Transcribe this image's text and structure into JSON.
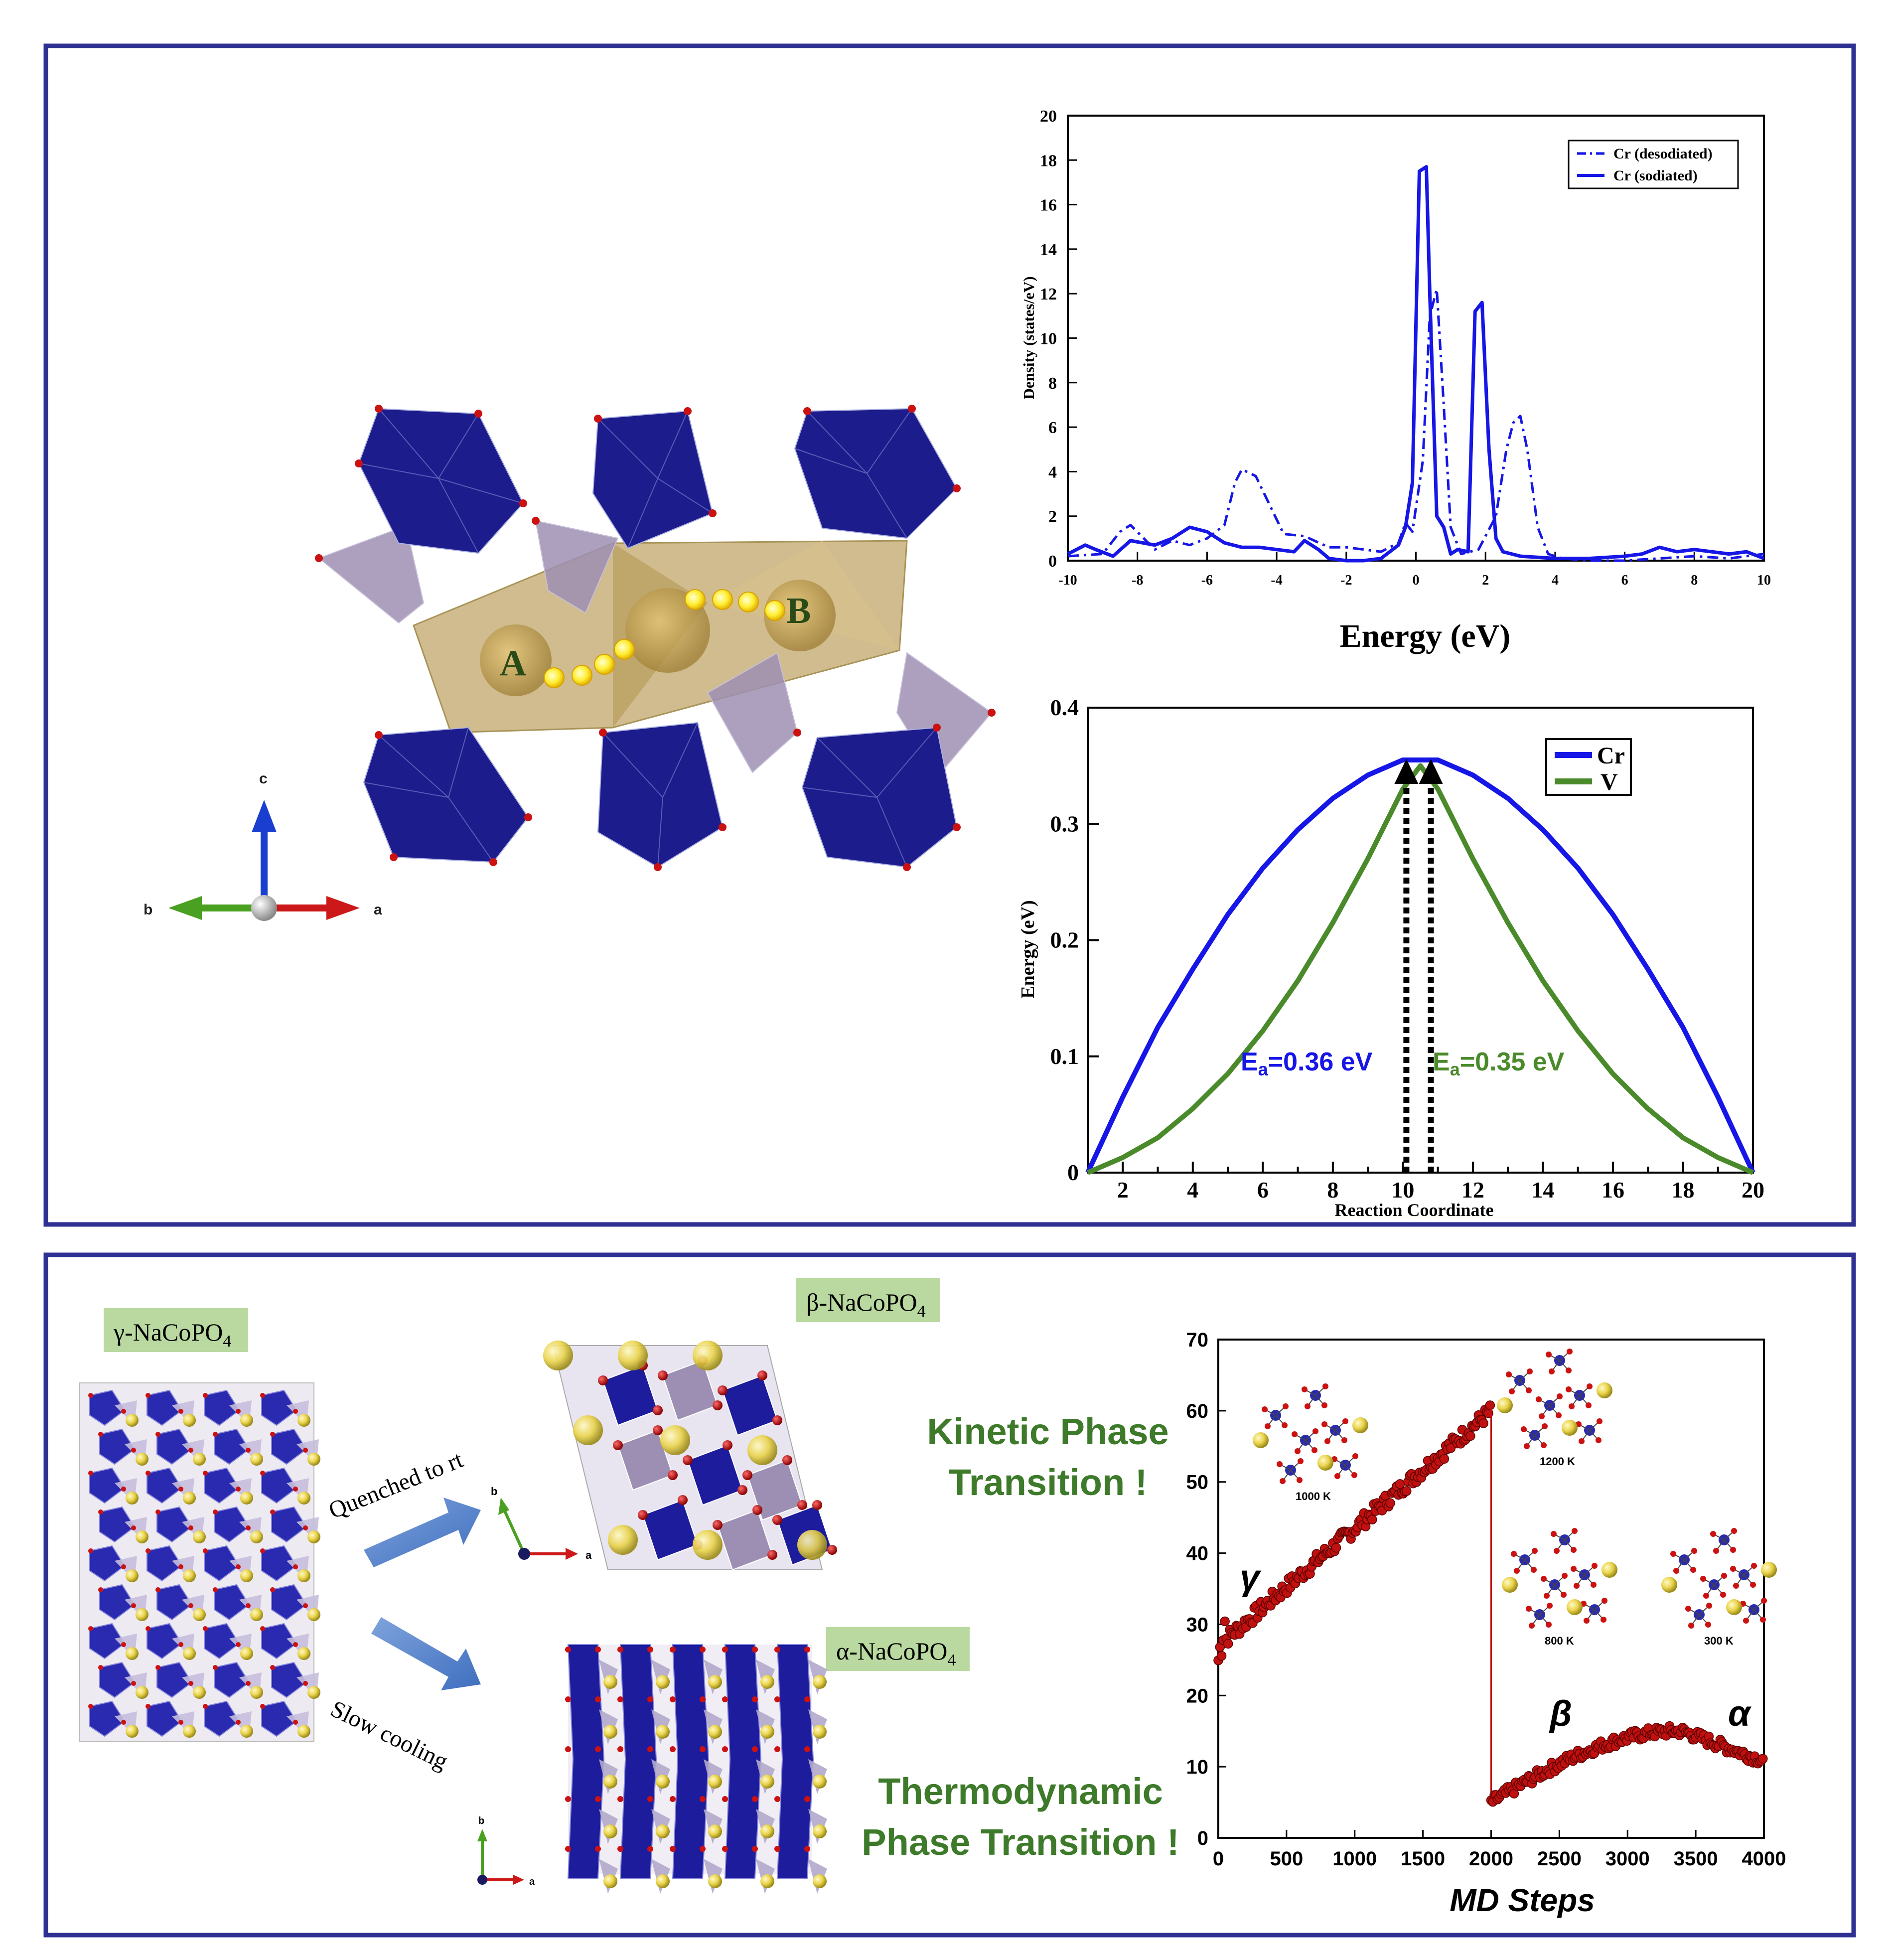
{
  "colors": {
    "frame": "#2e3192",
    "cr_blue": "#1616e6",
    "v_green": "#4a8a2a",
    "md_red": "#c0100f",
    "label_bg": "#b9d9a0",
    "phase_text": "#3d7a2a",
    "octa_blue": "#1c1c8c",
    "tetra_lilac": "#9d8fb3",
    "channel_gold": "#c8b07a",
    "na_yellow": "#e8d24a"
  },
  "structure": {
    "site_a": "A",
    "site_b": "B",
    "axis_c": "c",
    "axis_b": "b",
    "axis_a": "a"
  },
  "dos_chart": {
    "type": "line",
    "xlabel": "Energy (eV)",
    "ylabel": "Density (states/eV)",
    "xlim": [
      -10,
      10
    ],
    "ylim": [
      0,
      20
    ],
    "xticks": [
      "-10",
      "-8",
      "-6",
      "-4",
      "-2",
      "0",
      "2",
      "4",
      "6",
      "8",
      "10"
    ],
    "yticks": [
      "0",
      "2",
      "4",
      "6",
      "8",
      "10",
      "12",
      "14",
      "16",
      "18",
      "20"
    ],
    "legend": [
      "Cr (desodiated)",
      "Cr (sodiated)"
    ],
    "series": [
      {
        "name": "Cr (desodiated)",
        "style": "dash-dot",
        "x": [
          -10,
          -9,
          -8.5,
          -8.2,
          -7.5,
          -7,
          -6.5,
          -6,
          -5.5,
          -5.2,
          -5,
          -4.6,
          -4.2,
          -3.8,
          -3.2,
          -2.5,
          -2,
          -1.5,
          -1,
          -0.5,
          -0.3,
          -0.1,
          0.2,
          0.4,
          0.6,
          0.8,
          1.0,
          1.3,
          1.8,
          2.3,
          2.6,
          2.8,
          3.0,
          3.2,
          3.5,
          3.8,
          4.2,
          5,
          6,
          7,
          8,
          9,
          10
        ],
        "y": [
          0.2,
          0.3,
          1.3,
          1.6,
          0.5,
          0.9,
          0.7,
          1.0,
          1.6,
          3.5,
          4.1,
          3.8,
          2.5,
          1.2,
          1.1,
          0.6,
          0.6,
          0.5,
          0.4,
          0.8,
          1.7,
          1.3,
          4.5,
          11.0,
          12.2,
          7.0,
          1.5,
          0.3,
          0.5,
          2.0,
          5.0,
          6.2,
          6.5,
          5.0,
          1.5,
          0.3,
          0.1,
          0.0,
          0.0,
          0.1,
          0.2,
          0.1,
          0.3
        ]
      },
      {
        "name": "Cr (sodiated)",
        "style": "solid",
        "x": [
          -10,
          -9.5,
          -9.2,
          -8.7,
          -8.2,
          -7.5,
          -7,
          -6.5,
          -6,
          -5.5,
          -5,
          -4.5,
          -4,
          -3.5,
          -3.2,
          -2.8,
          -2.5,
          -2,
          -1.5,
          -1,
          -0.5,
          -0.3,
          -0.1,
          0.1,
          0.3,
          0.4,
          0.6,
          0.8,
          1.0,
          1.2,
          1.5,
          1.7,
          1.9,
          2.1,
          2.3,
          2.5,
          3,
          4,
          5,
          6,
          6.5,
          7,
          7.5,
          8,
          8.5,
          9,
          9.5,
          10
        ],
        "y": [
          0.3,
          0.7,
          0.5,
          0.2,
          0.9,
          0.7,
          1.0,
          1.5,
          1.3,
          0.8,
          0.6,
          0.6,
          0.5,
          0.4,
          0.9,
          0.5,
          0.1,
          0.0,
          0.0,
          0.1,
          0.7,
          1.5,
          3.5,
          17.5,
          17.7,
          12.0,
          2.0,
          1.5,
          0.3,
          0.5,
          0.4,
          11.2,
          11.6,
          5.0,
          1.0,
          0.4,
          0.2,
          0.1,
          0.1,
          0.2,
          0.3,
          0.6,
          0.4,
          0.5,
          0.4,
          0.3,
          0.4,
          0.1
        ]
      }
    ]
  },
  "neb_chart": {
    "type": "line",
    "xlabel": "Reaction Coordinate",
    "ylabel": "Energy (eV)",
    "xlim": [
      1,
      20
    ],
    "ylim": [
      0,
      0.4
    ],
    "xticks": [
      "2",
      "4",
      "6",
      "8",
      "10",
      "12",
      "14",
      "16",
      "18",
      "20"
    ],
    "yticks": [
      "0",
      "0.1",
      "0.2",
      "0.3",
      "0.4"
    ],
    "legend": [
      "Cr",
      "V"
    ],
    "annotation_cr": "E",
    "annotation_cr_sub": "a",
    "annotation_cr_val": "=0.36 eV",
    "annotation_v": "E",
    "annotation_v_sub": "a",
    "annotation_v_val": "=0.35 eV",
    "series": [
      {
        "name": "Cr",
        "x": [
          1,
          2,
          3,
          4,
          5,
          6,
          7,
          8,
          9,
          10,
          11,
          12,
          13,
          14,
          15,
          16,
          17,
          18,
          19,
          20
        ],
        "y": [
          0,
          0.065,
          0.125,
          0.175,
          0.222,
          0.262,
          0.295,
          0.322,
          0.342,
          0.355,
          0.355,
          0.342,
          0.322,
          0.295,
          0.262,
          0.222,
          0.175,
          0.125,
          0.065,
          0
        ]
      },
      {
        "name": "V",
        "x": [
          1,
          2,
          3,
          4,
          5,
          6,
          7,
          8,
          9,
          10,
          10.5,
          11,
          12,
          13,
          14,
          15,
          16,
          17,
          18,
          19,
          20
        ],
        "y": [
          0,
          0.013,
          0.03,
          0.055,
          0.085,
          0.122,
          0.165,
          0.215,
          0.27,
          0.33,
          0.35,
          0.33,
          0.27,
          0.215,
          0.165,
          0.122,
          0.085,
          0.055,
          0.03,
          0.013,
          0
        ]
      }
    ]
  },
  "phases": {
    "gamma_label": "γ-NaCoPO",
    "gamma_sub": "4",
    "beta_label": "β-NaCoPO",
    "beta_sub": "4",
    "alpha_label": "α-NaCoPO",
    "alpha_sub": "4",
    "quench_label": "Quenched to rt",
    "slow_label": "Slow cooling",
    "kinetic_line1": "Kinetic Phase",
    "kinetic_line2": "Transition !",
    "thermo_line1": "Thermodynamic",
    "thermo_line2": "Phase Transition !"
  },
  "md_chart": {
    "type": "scatter",
    "xlabel": "MD Steps",
    "xlim": [
      0,
      4000
    ],
    "ylim": [
      0,
      70
    ],
    "xticks": [
      "0",
      "500",
      "1000",
      "1500",
      "2000",
      "2500",
      "3000",
      "3500",
      "4000"
    ],
    "yticks": [
      "0",
      "10",
      "20",
      "30",
      "40",
      "50",
      "60",
      "70"
    ],
    "gamma": "γ",
    "beta": "β",
    "alpha": "α",
    "temps": [
      "1000 K",
      "1200 K",
      "800 K",
      "300 K"
    ]
  }
}
